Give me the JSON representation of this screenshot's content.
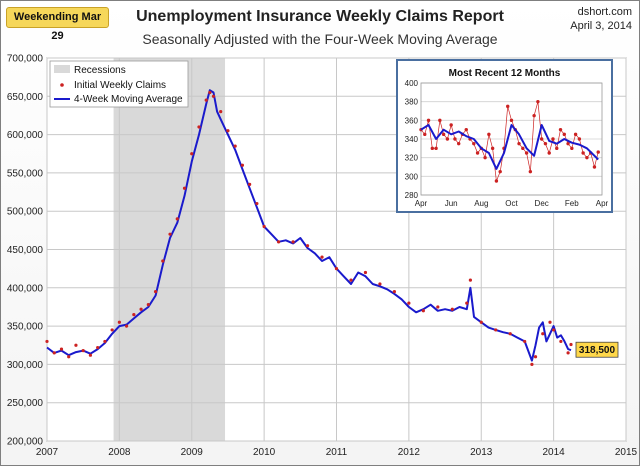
{
  "header": {
    "badge": "Weekending Mar 29",
    "title": "Unemployment Insurance Weekly Claims Report",
    "subtitle": "Seasonally Adjusted with the Four-Week Moving Average",
    "source": "dshort.com",
    "date": "April 3, 2014"
  },
  "chart_data": [
    {
      "type": "line",
      "title": "Unemployment Insurance Weekly Claims Report",
      "subtitle": "Seasonally Adjusted with the Four-Week Moving Average",
      "xlabel": "",
      "ylabel": "",
      "x_ticks": [
        "2007",
        "2008",
        "2009",
        "2010",
        "2011",
        "2012",
        "2013",
        "2014",
        "2015"
      ],
      "x_range": [
        2007,
        2015
      ],
      "y_ticks": [
        "200,000",
        "250,000",
        "300,000",
        "350,000",
        "400,000",
        "450,000",
        "500,000",
        "550,000",
        "600,000",
        "650,000",
        "700,000"
      ],
      "ylim": [
        200000,
        700000
      ],
      "grid": true,
      "legend_position": "top-left",
      "shaded_regions": [
        {
          "name": "Recessions",
          "start": 2007.92,
          "end": 2009.46
        }
      ],
      "series": [
        {
          "name": "Initial Weekly Claims",
          "style": "red-points",
          "x": [
            2007.0,
            2007.1,
            2007.2,
            2007.3,
            2007.4,
            2007.5,
            2007.6,
            2007.7,
            2007.8,
            2007.9,
            2008.0,
            2008.1,
            2008.2,
            2008.3,
            2008.4,
            2008.5,
            2008.6,
            2008.7,
            2008.8,
            2008.9,
            2009.0,
            2009.1,
            2009.2,
            2009.25,
            2009.3,
            2009.4,
            2009.5,
            2009.6,
            2009.7,
            2009.8,
            2009.9,
            2010.0,
            2010.2,
            2010.4,
            2010.6,
            2010.8,
            2011.0,
            2011.2,
            2011.4,
            2011.6,
            2011.8,
            2012.0,
            2012.2,
            2012.4,
            2012.6,
            2012.8,
            2012.85,
            2013.0,
            2013.2,
            2013.4,
            2013.6,
            2013.7,
            2013.75,
            2013.85,
            2013.95,
            2014.0,
            2014.1,
            2014.2,
            2014.24
          ],
          "values": [
            330000,
            315000,
            320000,
            310000,
            325000,
            318000,
            312000,
            322000,
            330000,
            345000,
            355000,
            350000,
            365000,
            372000,
            378000,
            395000,
            435000,
            470000,
            490000,
            530000,
            575000,
            610000,
            645000,
            655000,
            650000,
            630000,
            605000,
            585000,
            560000,
            535000,
            510000,
            480000,
            460000,
            460000,
            455000,
            440000,
            425000,
            410000,
            420000,
            405000,
            395000,
            380000,
            370000,
            375000,
            372000,
            380000,
            410000,
            355000,
            345000,
            340000,
            330000,
            300000,
            310000,
            340000,
            355000,
            345000,
            330000,
            315000,
            326000
          ]
        },
        {
          "name": "4-Week Moving Average",
          "style": "blue-line",
          "x": [
            2007.0,
            2007.1,
            2007.2,
            2007.3,
            2007.4,
            2007.5,
            2007.6,
            2007.7,
            2007.8,
            2007.9,
            2008.0,
            2008.1,
            2008.2,
            2008.3,
            2008.4,
            2008.5,
            2008.6,
            2008.7,
            2008.8,
            2008.9,
            2009.0,
            2009.1,
            2009.2,
            2009.25,
            2009.3,
            2009.35,
            2009.4,
            2009.5,
            2009.6,
            2009.7,
            2009.8,
            2009.9,
            2010.0,
            2010.1,
            2010.2,
            2010.3,
            2010.4,
            2010.5,
            2010.6,
            2010.7,
            2010.8,
            2010.9,
            2011.0,
            2011.1,
            2011.2,
            2011.3,
            2011.4,
            2011.5,
            2011.6,
            2011.7,
            2011.8,
            2011.9,
            2012.0,
            2012.1,
            2012.2,
            2012.3,
            2012.4,
            2012.5,
            2012.6,
            2012.7,
            2012.8,
            2012.85,
            2012.9,
            2013.0,
            2013.1,
            2013.2,
            2013.3,
            2013.4,
            2013.5,
            2013.6,
            2013.7,
            2013.75,
            2013.8,
            2013.85,
            2013.9,
            2013.95,
            2014.0,
            2014.05,
            2014.1,
            2014.15,
            2014.2,
            2014.24
          ],
          "values": [
            322000,
            315000,
            318000,
            312000,
            316000,
            318000,
            314000,
            320000,
            328000,
            340000,
            350000,
            352000,
            360000,
            368000,
            375000,
            390000,
            430000,
            465000,
            485000,
            520000,
            565000,
            600000,
            640000,
            658000,
            655000,
            630000,
            620000,
            600000,
            580000,
            555000,
            530000,
            505000,
            480000,
            470000,
            460000,
            462000,
            458000,
            465000,
            452000,
            445000,
            435000,
            440000,
            425000,
            415000,
            405000,
            420000,
            415000,
            405000,
            402000,
            398000,
            392000,
            385000,
            375000,
            368000,
            372000,
            378000,
            370000,
            372000,
            370000,
            375000,
            372000,
            400000,
            362000,
            355000,
            348000,
            345000,
            342000,
            340000,
            335000,
            330000,
            305000,
            325000,
            348000,
            355000,
            330000,
            340000,
            350000,
            335000,
            338000,
            330000,
            320000,
            318500
          ]
        }
      ],
      "end_label": "318,500"
    },
    {
      "type": "line",
      "title": "Most Recent 12 Months",
      "x_ticks": [
        "Apr",
        "Jun",
        "Aug",
        "Oct",
        "Dec",
        "Feb",
        "Apr"
      ],
      "y_ticks": [
        "280",
        "300",
        "320",
        "340",
        "360",
        "380",
        "400"
      ],
      "ylim": [
        280,
        400
      ],
      "grid": true,
      "series": [
        {
          "name": "Initial Weekly Claims",
          "style": "red-line-points",
          "x": [
            0,
            0.25,
            0.5,
            0.75,
            1,
            1.25,
            1.5,
            1.75,
            2,
            2.25,
            2.5,
            2.75,
            3,
            3.25,
            3.5,
            3.75,
            4,
            4.25,
            4.5,
            4.75,
            5,
            5.25,
            5.5,
            5.75,
            6,
            6.25,
            6.5,
            6.75,
            7,
            7.25,
            7.5,
            7.75,
            8,
            8.25,
            8.5,
            8.75,
            9,
            9.25,
            9.5,
            9.75,
            10,
            10.25,
            10.5,
            10.75,
            11,
            11.25,
            11.5,
            11.75
          ],
          "values": [
            350,
            345,
            360,
            330,
            330,
            360,
            345,
            340,
            355,
            340,
            335,
            345,
            350,
            340,
            335,
            325,
            330,
            320,
            345,
            330,
            295,
            305,
            330,
            375,
            360,
            350,
            335,
            330,
            325,
            305,
            365,
            380,
            340,
            335,
            325,
            340,
            330,
            350,
            345,
            335,
            330,
            345,
            340,
            325,
            320,
            325,
            310,
            326
          ]
        },
        {
          "name": "4-Week Moving Average",
          "style": "blue-line",
          "x": [
            0,
            0.5,
            1,
            1.5,
            2,
            2.5,
            3,
            3.5,
            4,
            4.5,
            5,
            5.5,
            6,
            6.5,
            7,
            7.5,
            8,
            8.5,
            9,
            9.5,
            10,
            10.5,
            11,
            11.5,
            11.75
          ],
          "values": [
            350,
            355,
            340,
            350,
            345,
            348,
            343,
            340,
            330,
            325,
            308,
            325,
            355,
            345,
            330,
            322,
            355,
            338,
            335,
            340,
            336,
            334,
            330,
            322,
            318
          ]
        }
      ]
    }
  ],
  "legend": {
    "recessions": "Recessions",
    "claims": "Initial Weekly Claims",
    "average": "4-Week Moving Average"
  },
  "inset": {
    "title": "Most Recent 12 Months"
  },
  "colors": {
    "claims": "#cc2222",
    "average": "#1a1acc",
    "recession": "#d9d9d9",
    "badge": "#f6d75a",
    "label_box": "#ffd84a"
  }
}
